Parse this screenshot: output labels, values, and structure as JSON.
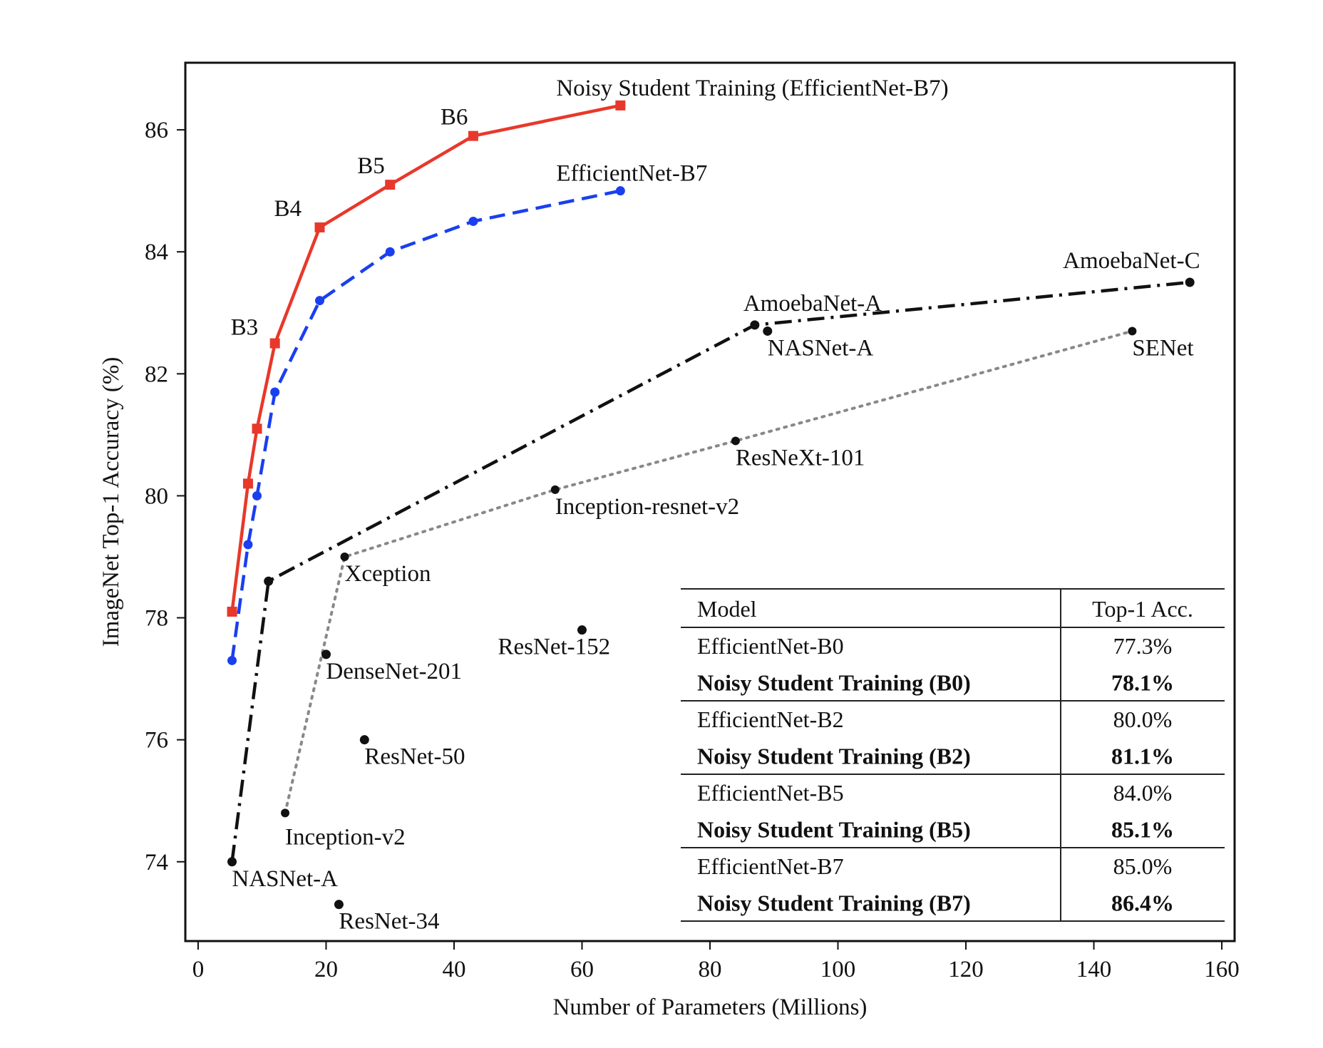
{
  "chart_data": {
    "type": "line",
    "xlabel": "Number of Parameters (Millions)",
    "ylabel": "ImageNet Top-1 Accuracy (%)",
    "xlim": [
      -2,
      162
    ],
    "ylim": [
      72.7,
      87.1
    ],
    "xticks": [
      "0",
      "20",
      "40",
      "60",
      "80",
      "100",
      "120",
      "140",
      "160"
    ],
    "yticks": [
      "74",
      "76",
      "78",
      "80",
      "82",
      "84",
      "86"
    ],
    "grid": false,
    "series": [
      {
        "name": "Noisy Student Training (EfficientNet-B7)",
        "color": "#e8382b",
        "style": "solid",
        "marker": "square",
        "x": [
          5.3,
          7.8,
          9.2,
          12,
          19,
          30,
          43,
          66
        ],
        "y": [
          78.1,
          80.2,
          81.1,
          82.5,
          84.4,
          85.1,
          85.9,
          86.4
        ],
        "point_labels": [
          "",
          "",
          "",
          "B3",
          "B4",
          "B5",
          "B6",
          "Noisy Student Training (EfficientNet-B7)"
        ]
      },
      {
        "name": "EfficientNet-B7",
        "color": "#1a3ff0",
        "style": "dashed",
        "marker": "circle",
        "x": [
          5.3,
          7.8,
          9.2,
          12,
          19,
          30,
          43,
          66
        ],
        "y": [
          77.3,
          79.2,
          80.0,
          81.7,
          83.2,
          84.0,
          84.5,
          85.0
        ],
        "point_labels": [
          "",
          "",
          "",
          "",
          "",
          "",
          "",
          "EfficientNet-B7"
        ]
      },
      {
        "name": "",
        "color": "#111111",
        "style": "dashdot",
        "marker": "circle",
        "x": [
          5.3,
          11,
          87,
          155
        ],
        "y": [
          74.0,
          78.6,
          82.8,
          83.5
        ],
        "point_labels": [
          "NASNet-A",
          "",
          "AmoebaNet-A",
          "AmoebaNet-C"
        ]
      },
      {
        "name": "",
        "color": "#888888",
        "style": "dotted",
        "marker": "circle",
        "x": [
          13.6,
          22.9,
          55.8,
          84,
          146
        ],
        "y": [
          74.8,
          79.0,
          80.1,
          80.9,
          82.7
        ],
        "point_labels": [
          "Inception-v2",
          "Xception",
          "Inception-resnet-v2",
          "ResNeXt-101",
          "SENet"
        ]
      }
    ],
    "scatter_points": [
      {
        "label": "DenseNet-201",
        "x": 20,
        "y": 77.4
      },
      {
        "label": "ResNet-152",
        "x": 60,
        "y": 77.8
      },
      {
        "label": "ResNet-50",
        "x": 26,
        "y": 76.0
      },
      {
        "label": "ResNet-34",
        "x": 22,
        "y": 73.3
      },
      {
        "label": "NASNet-A",
        "x": 89,
        "y": 82.7
      }
    ],
    "table": {
      "headers": [
        "Model",
        "Top-1 Acc."
      ],
      "rows": [
        {
          "model": "EfficientNet-B0",
          "acc": "77.3%",
          "bold": false
        },
        {
          "model": "Noisy Student Training (B0)",
          "acc": "78.1%",
          "bold": true
        },
        {
          "model": "EfficientNet-B2",
          "acc": "80.0%",
          "bold": false
        },
        {
          "model": "Noisy Student Training (B2)",
          "acc": "81.1%",
          "bold": true
        },
        {
          "model": "EfficientNet-B5",
          "acc": "84.0%",
          "bold": false
        },
        {
          "model": "Noisy Student Training (B5)",
          "acc": "85.1%",
          "bold": true
        },
        {
          "model": "EfficientNet-B7",
          "acc": "85.0%",
          "bold": false
        },
        {
          "model": "Noisy Student Training (B7)",
          "acc": "86.4%",
          "bold": true
        }
      ]
    }
  }
}
